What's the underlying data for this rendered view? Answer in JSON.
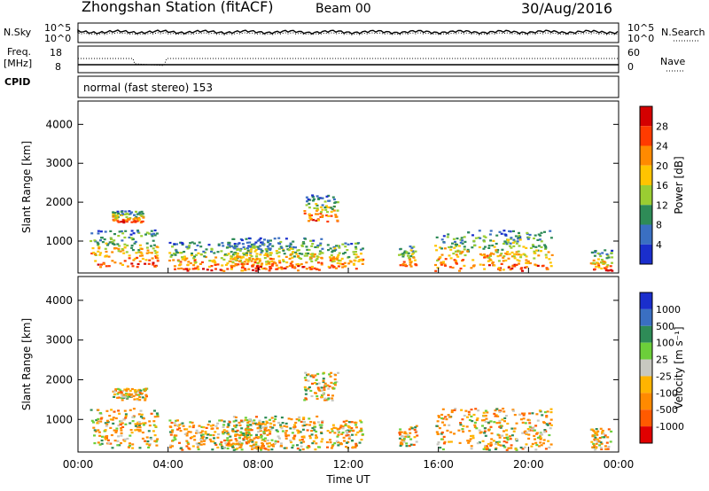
{
  "header": {
    "station": "Zhongshan Station (fitACF)",
    "beam": "Beam 00",
    "date": "30/Aug/2016"
  },
  "noise_panel": {
    "left_label": "N.Sky",
    "left_ticks": [
      "10^5",
      "10^0"
    ],
    "right_ticks": [
      "10^5",
      "10^0"
    ],
    "right_label": "N.Search"
  },
  "freq_panel": {
    "left_label_1": "Freq.",
    "left_label_2": "[MHz]",
    "left_ticks": [
      "18",
      "8"
    ],
    "right_ticks": [
      "60",
      "0"
    ],
    "right_label": "Nave",
    "cpid_label": "CPID",
    "cpid_text": "normal (fast stereo) 153"
  },
  "chart_data": [
    {
      "type": "heatmap",
      "title": "",
      "xlabel": "Time UT",
      "ylabel": "Slant Range [km]",
      "x_tick_labels": [
        "00:00",
        "04:00",
        "08:00",
        "12:00",
        "16:00",
        "20:00",
        "00:00"
      ],
      "y_tick_labels": [
        "1000",
        "2000",
        "3000",
        "4000"
      ],
      "ylim": [
        180,
        4600
      ],
      "colorbar_label": "Power [dB]",
      "colorbar_ticks": [
        "28",
        "24",
        "20",
        "16",
        "12",
        "8",
        "4"
      ],
      "colorbar_colors": [
        "#d40000",
        "#ff3b00",
        "#ff8a00",
        "#ffc400",
        "#9acd32",
        "#2e8b57",
        "#3a6fc2",
        "#1a2ecc"
      ],
      "echo_bands": [
        {
          "t0": 0.5,
          "t1": 3.5,
          "r0": 350,
          "r1": 1300
        },
        {
          "t0": 1.5,
          "t1": 3.0,
          "r0": 1500,
          "r1": 1800
        },
        {
          "t0": 4.0,
          "t1": 8.5,
          "r0": 250,
          "r1": 1000
        },
        {
          "t0": 6.5,
          "t1": 10.8,
          "r0": 250,
          "r1": 1100
        },
        {
          "t0": 10.0,
          "t1": 11.5,
          "r0": 1500,
          "r1": 2200
        },
        {
          "t0": 11.0,
          "t1": 12.6,
          "r0": 300,
          "r1": 1000
        },
        {
          "t0": 14.2,
          "t1": 15.0,
          "r0": 350,
          "r1": 900
        },
        {
          "t0": 15.8,
          "t1": 21.0,
          "r0": 250,
          "r1": 1300
        },
        {
          "t0": 22.7,
          "t1": 23.7,
          "r0": 250,
          "r1": 800
        }
      ]
    },
    {
      "type": "heatmap",
      "title": "",
      "xlabel": "Time UT",
      "ylabel": "Slant Range [km]",
      "x_tick_labels": [
        "00:00",
        "04:00",
        "08:00",
        "12:00",
        "16:00",
        "20:00",
        "00:00"
      ],
      "y_tick_labels": [
        "1000",
        "2000",
        "3000",
        "4000"
      ],
      "ylim": [
        180,
        4600
      ],
      "colorbar_label": "Velocity [m s⁻¹]",
      "colorbar_ticks": [
        "1000",
        "500",
        "100",
        "25",
        "-25",
        "-100",
        "-500",
        "-1000"
      ],
      "colorbar_colors": [
        "#1a2ecc",
        "#3a6fc2",
        "#2e8b57",
        "#6ccf3a",
        "#c8c8c0",
        "#ffb400",
        "#ff8a00",
        "#ff5a00",
        "#e00000"
      ],
      "echo_bands": [
        {
          "t0": 0.5,
          "t1": 3.5,
          "r0": 300,
          "r1": 1300
        },
        {
          "t0": 1.5,
          "t1": 3.0,
          "r0": 1500,
          "r1": 1800
        },
        {
          "t0": 4.0,
          "t1": 8.5,
          "r0": 250,
          "r1": 1000
        },
        {
          "t0": 6.5,
          "t1": 10.8,
          "r0": 250,
          "r1": 1100
        },
        {
          "t0": 10.0,
          "t1": 11.5,
          "r0": 1500,
          "r1": 2200
        },
        {
          "t0": 11.0,
          "t1": 12.6,
          "r0": 300,
          "r1": 1000
        },
        {
          "t0": 14.2,
          "t1": 15.0,
          "r0": 350,
          "r1": 900
        },
        {
          "t0": 15.8,
          "t1": 21.0,
          "r0": 250,
          "r1": 1300
        },
        {
          "t0": 22.7,
          "t1": 23.7,
          "r0": 250,
          "r1": 800
        }
      ]
    }
  ]
}
